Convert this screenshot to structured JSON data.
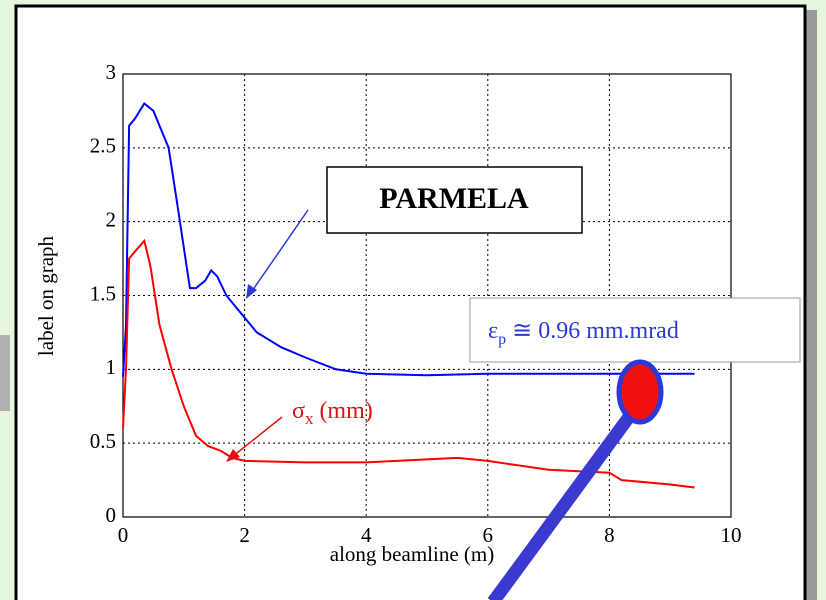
{
  "chart_data": {
    "type": "line",
    "ylabel": "label on graph",
    "xlabel": "along beamline (m)",
    "xlim": [
      0,
      10
    ],
    "xticks": [
      0,
      2,
      4,
      6,
      8,
      10
    ],
    "ylim": [
      0,
      3
    ],
    "yticks": [
      0,
      0.5,
      1,
      1.5,
      2,
      2.5,
      3
    ],
    "grid": true,
    "series": [
      {
        "color": "#0000ff",
        "x": [
          0,
          0.05,
          0.1,
          0.2,
          0.35,
          0.5,
          0.6,
          0.75,
          0.9,
          1.1,
          1.2,
          1.35,
          1.45,
          1.55,
          1.7,
          1.9,
          2.2,
          2.6,
          3,
          3.5,
          4,
          5,
          6,
          7,
          8,
          9.4
        ],
        "values": [
          0.95,
          1.3,
          2.65,
          2.7,
          2.8,
          2.75,
          2.65,
          2.5,
          2.1,
          1.55,
          1.55,
          1.6,
          1.67,
          1.63,
          1.5,
          1.4,
          1.25,
          1.15,
          1.08,
          1.0,
          0.97,
          0.96,
          0.97,
          0.97,
          0.97,
          0.97
        ]
      },
      {
        "color": "#ff0000",
        "x": [
          0,
          0.05,
          0.1,
          0.2,
          0.35,
          0.45,
          0.6,
          0.8,
          1,
          1.2,
          1.4,
          1.6,
          1.8,
          2,
          3,
          4,
          5,
          5.5,
          6,
          7,
          8,
          8.2,
          9,
          9.4
        ],
        "values": [
          0.6,
          1.0,
          1.75,
          1.8,
          1.87,
          1.7,
          1.3,
          1.0,
          0.75,
          0.55,
          0.48,
          0.45,
          0.4,
          0.38,
          0.37,
          0.37,
          0.39,
          0.4,
          0.38,
          0.32,
          0.3,
          0.25,
          0.22,
          0.2
        ]
      }
    ],
    "annotations": {
      "parmela": "PARMELA",
      "sigma": {
        "symbol": "σ",
        "sub": "x",
        "text": "(mm)"
      },
      "emittance": {
        "symbol": "ε",
        "sub": "p",
        "text": "≅ 0.96 mm.mrad"
      }
    }
  }
}
